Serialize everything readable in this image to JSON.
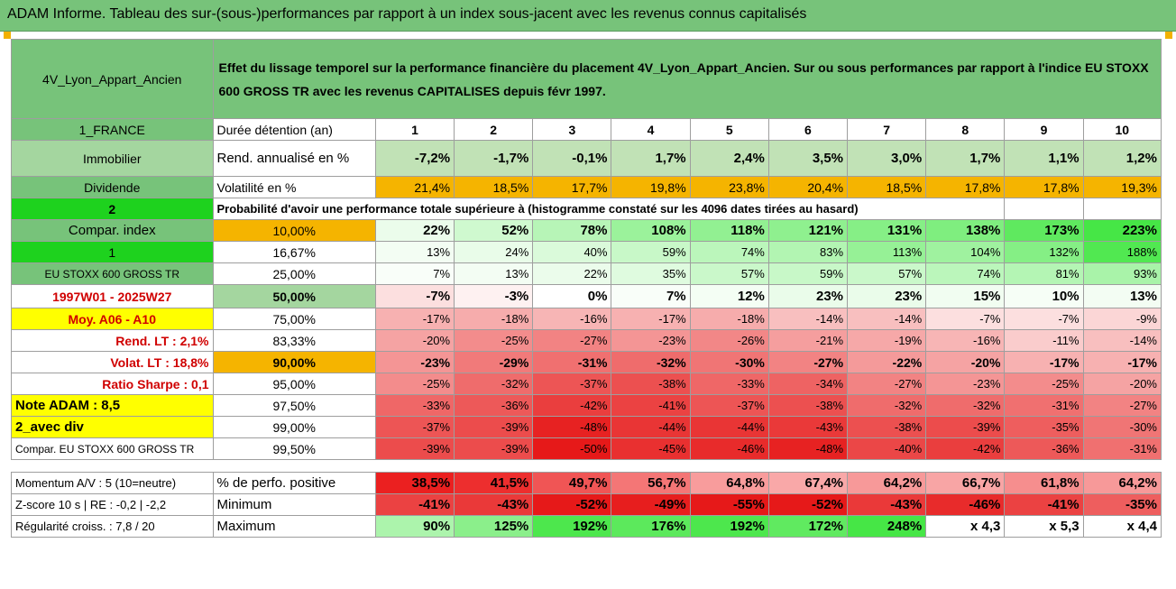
{
  "title": "ADAM Informe. Tableau des sur-(sous-)performances par rapport à un index sous-jacent avec les revenus connus capitalisés",
  "header": {
    "fund": "4V_Lyon_Appart_Ancien",
    "description": "Effet du lissage temporel sur la performance financière du placement 4V_Lyon_Appart_Ancien. Sur ou sous performances par rapport à l'indice EU STOXX 600 GROSS TR avec les revenus CAPITALISES depuis févr 1997."
  },
  "rows": {
    "duration": {
      "side": "1_FRANCE",
      "label": "Durée détention (an)",
      "values": [
        "1",
        "2",
        "3",
        "4",
        "5",
        "6",
        "7",
        "8",
        "9",
        "10"
      ]
    },
    "return": {
      "side": "Immobilier",
      "label": "Rend. annualisé en %",
      "values": [
        "-7,2%",
        "-1,7%",
        "-0,1%",
        "1,7%",
        "2,4%",
        "3,5%",
        "3,0%",
        "1,7%",
        "1,1%",
        "1,2%"
      ]
    },
    "volatility": {
      "side": "Dividende",
      "label": "Volatilité en %",
      "values": [
        "21,4%",
        "18,5%",
        "17,7%",
        "19,8%",
        "23,8%",
        "20,4%",
        "18,5%",
        "17,8%",
        "17,8%",
        "19,3%"
      ]
    },
    "prob_header": {
      "side": "2",
      "label": "Probabilité d'avoir une performance totale supérieure à (histogramme constaté sur les 4096 dates tirées au hasard)"
    }
  },
  "quantiles": [
    {
      "side": "Compar. index",
      "q": "10,00%",
      "values": [
        "22%",
        "52%",
        "78%",
        "108%",
        "118%",
        "121%",
        "131%",
        "138%",
        "173%",
        "223%"
      ]
    },
    {
      "side": "1",
      "q": "16,67%",
      "values": [
        "13%",
        "24%",
        "40%",
        "59%",
        "74%",
        "83%",
        "113%",
        "104%",
        "132%",
        "188%"
      ]
    },
    {
      "side": "EU STOXX 600 GROSS TR",
      "q": "25,00%",
      "values": [
        "7%",
        "13%",
        "22%",
        "35%",
        "57%",
        "59%",
        "57%",
        "74%",
        "81%",
        "93%"
      ]
    },
    {
      "side": "1997W01 - 2025W27",
      "q": "50,00%",
      "values": [
        "-7%",
        "-3%",
        "0%",
        "7%",
        "12%",
        "23%",
        "23%",
        "15%",
        "10%",
        "13%"
      ]
    },
    {
      "side": "Moy. A06 - A10",
      "q": "75,00%",
      "values": [
        "-17%",
        "-18%",
        "-16%",
        "-17%",
        "-18%",
        "-14%",
        "-14%",
        "-7%",
        "-7%",
        "-9%"
      ]
    },
    {
      "side": "Rend. LT :    2,1%",
      "q": "83,33%",
      "values": [
        "-20%",
        "-25%",
        "-27%",
        "-23%",
        "-26%",
        "-21%",
        "-19%",
        "-16%",
        "-11%",
        "-14%"
      ]
    },
    {
      "side": "Volat. LT :    18,8%",
      "q": "90,00%",
      "values": [
        "-23%",
        "-29%",
        "-31%",
        "-32%",
        "-30%",
        "-27%",
        "-22%",
        "-20%",
        "-17%",
        "-17%"
      ]
    },
    {
      "side": "Ratio Sharpe :    0,1",
      "q": "95,00%",
      "values": [
        "-25%",
        "-32%",
        "-37%",
        "-38%",
        "-33%",
        "-34%",
        "-27%",
        "-23%",
        "-25%",
        "-20%"
      ]
    },
    {
      "side": "Note ADAM : 8,5",
      "q": "97,50%",
      "values": [
        "-33%",
        "-36%",
        "-42%",
        "-41%",
        "-37%",
        "-38%",
        "-32%",
        "-32%",
        "-31%",
        "-27%"
      ]
    },
    {
      "side": "2_avec div",
      "q": "99,00%",
      "values": [
        "-37%",
        "-39%",
        "-48%",
        "-44%",
        "-44%",
        "-43%",
        "-38%",
        "-39%",
        "-35%",
        "-30%"
      ]
    },
    {
      "side": "Compar. EU STOXX 600 GROSS TR",
      "q": "99,50%",
      "values": [
        "-39%",
        "-39%",
        "-50%",
        "-45%",
        "-46%",
        "-48%",
        "-40%",
        "-42%",
        "-36%",
        "-31%"
      ]
    }
  ],
  "bottom": [
    {
      "side": "Momentum A/V : 5 (10=neutre)",
      "label": "% de perfo. positive",
      "values": [
        "38,5%",
        "41,5%",
        "49,7%",
        "56,7%",
        "64,8%",
        "67,4%",
        "64,2%",
        "66,7%",
        "61,8%",
        "64,2%"
      ]
    },
    {
      "side": "Z-score 10 s | RE : -0,2 | -2,2",
      "label": "Minimum",
      "values": [
        "-41%",
        "-43%",
        "-52%",
        "-49%",
        "-55%",
        "-52%",
        "-43%",
        "-46%",
        "-41%",
        "-35%"
      ]
    },
    {
      "side": "Régularité croiss. : 7,8 / 20",
      "label": "Maximum",
      "values": [
        "90%",
        "125%",
        "192%",
        "176%",
        "192%",
        "172%",
        "248%",
        "x 4,3",
        "x 5,3",
        "x 4,4"
      ]
    }
  ],
  "colors": {
    "header_green": "#77c37a",
    "orange": "#f5b400",
    "bright_green": "#1ed21e",
    "yellow": "#ffff00",
    "red_text": "#d00000"
  }
}
